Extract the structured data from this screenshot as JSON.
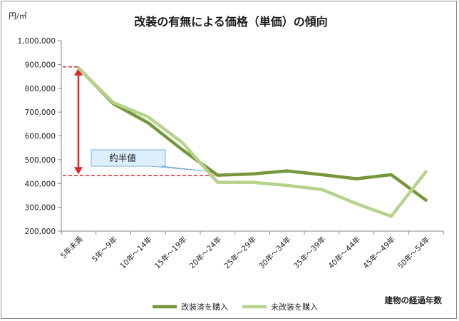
{
  "chart_data": {
    "type": "line",
    "title": "改装の有無による価格（単価）の傾向",
    "unit_label": "円/㎡",
    "xlabel": "建物の経過年数",
    "ylim": [
      200000,
      1000000
    ],
    "y_ticks": [
      "1,000,000",
      "900,000",
      "800,000",
      "700,000",
      "600,000",
      "500,000",
      "400,000",
      "300,000",
      "200,000"
    ],
    "y_tick_values": [
      1000000,
      900000,
      800000,
      700000,
      600000,
      500000,
      400000,
      300000,
      200000
    ],
    "categories": [
      "5年未満",
      "5年～9年",
      "10年～14年",
      "15年～19年",
      "20年～24年",
      "25年～29年",
      "30年～34年",
      "35年～39年",
      "40年～44年",
      "45年～49年",
      "50年～54年"
    ],
    "series": [
      {
        "name": "改装済を購入",
        "color": "#76963c",
        "values": [
          885000,
          735000,
          655000,
          540000,
          435000,
          440000,
          453000,
          437000,
          420000,
          437000,
          330000
        ]
      },
      {
        "name": "未改装を購入",
        "color": "#b6d28b",
        "values": [
          885000,
          740000,
          680000,
          570000,
          405000,
          405000,
          392000,
          375000,
          315000,
          262000,
          450000
        ]
      }
    ],
    "annotation": {
      "label": "約半値",
      "upper_value": 890000,
      "lower_value": 433000,
      "guide_color": "#e0252b",
      "callout_fill": "#dcefff",
      "callout_border": "#7aaedc"
    },
    "grid": false,
    "legend_position": "bottom"
  }
}
